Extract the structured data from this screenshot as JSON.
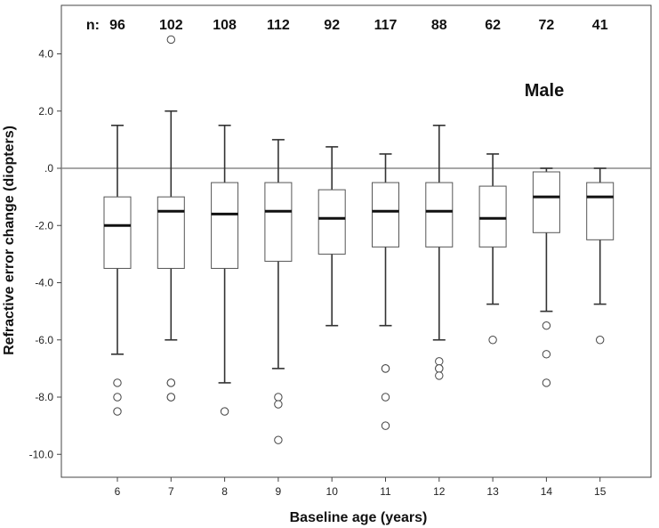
{
  "chart_data": {
    "type": "boxplot",
    "title": "",
    "panel_label": "Male",
    "xlabel": "Baseline age (years)",
    "ylabel": "Refractive error change (diopters)",
    "ylim": [
      -11.0,
      5.5
    ],
    "yticks": [
      4.0,
      2.0,
      0.0,
      -2.0,
      -4.0,
      -6.0,
      -8.0,
      -10.0
    ],
    "ytick_labels": [
      "4.0",
      "2.0",
      ".0",
      "-2.0",
      "-4.0",
      "-6.0",
      "-8.0",
      "-10.0"
    ],
    "reference_line": 0.0,
    "n_prefix": "n:",
    "categories": [
      "6",
      "7",
      "8",
      "9",
      "10",
      "11",
      "12",
      "13",
      "14",
      "15"
    ],
    "n": [
      "96",
      "102",
      "108",
      "112",
      "92",
      "117",
      "88",
      "62",
      "72",
      "41"
    ],
    "boxes": [
      {
        "whisker_low": -6.5,
        "q1": -3.5,
        "median": -2.0,
        "q3": -1.0,
        "whisker_high": 1.5,
        "outliers": [
          -7.5,
          -8.0,
          -8.5
        ]
      },
      {
        "whisker_low": -6.0,
        "q1": -3.5,
        "median": -1.5,
        "q3": -1.0,
        "whisker_high": 2.0,
        "outliers": [
          -7.5,
          -7.5,
          -8.0,
          -8.0,
          4.5
        ]
      },
      {
        "whisker_low": -7.5,
        "q1": -3.5,
        "median": -1.6,
        "q3": -0.5,
        "whisker_high": 1.5,
        "outliers": [
          -8.5
        ]
      },
      {
        "whisker_low": -7.0,
        "q1": -3.25,
        "median": -1.5,
        "q3": -0.5,
        "whisker_high": 1.0,
        "outliers": [
          -8.0,
          -8.25,
          -9.5
        ]
      },
      {
        "whisker_low": -5.5,
        "q1": -3.0,
        "median": -1.75,
        "q3": -0.75,
        "whisker_high": 0.75,
        "outliers": []
      },
      {
        "whisker_low": -5.5,
        "q1": -2.75,
        "median": -1.5,
        "q3": -0.5,
        "whisker_high": 0.5,
        "outliers": [
          -7.0,
          -7.0,
          -8.0,
          -9.0
        ]
      },
      {
        "whisker_low": -6.0,
        "q1": -2.75,
        "median": -1.5,
        "q3": -0.5,
        "whisker_high": 1.5,
        "outliers": [
          -6.75,
          -7.0,
          -7.0,
          -7.25
        ]
      },
      {
        "whisker_low": -4.75,
        "q1": -2.75,
        "median": -1.75,
        "q3": -0.625,
        "whisker_high": 0.5,
        "outliers": [
          -6.0
        ]
      },
      {
        "whisker_low": -5.0,
        "q1": -2.25,
        "median": -1.0,
        "q3": -0.125,
        "whisker_high": 0.0,
        "outliers": [
          -5.5,
          -6.5,
          -7.5
        ]
      },
      {
        "whisker_low": -4.75,
        "q1": -2.5,
        "median": -1.0,
        "q3": -0.5,
        "whisker_high": 0.0,
        "outliers": [
          -6.0
        ]
      }
    ],
    "grid": false,
    "colors": {
      "box_fill": "#ffffff",
      "stroke": "#333333",
      "median": "#111111",
      "reference_line": "#8a8a8a"
    }
  }
}
